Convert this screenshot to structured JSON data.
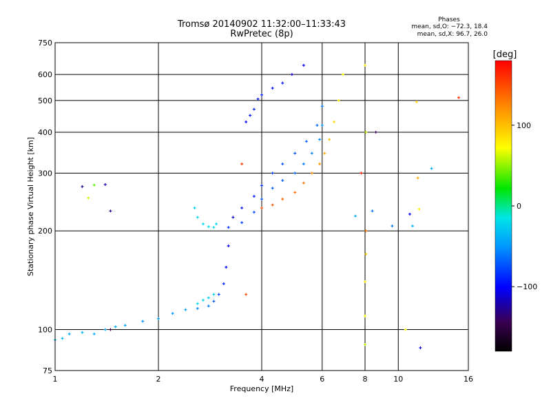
{
  "chart_data": {
    "type": "scatter",
    "title": "Tromsø 20140902 11:32:00–11:33:43",
    "subtitle": "RwPretec (8p)",
    "xlabel": "Frequency [MHz]",
    "ylabel": "Stationary phase Virtual Height [km]",
    "x_scale": "log",
    "y_scale": "log",
    "xlim": [
      1,
      16
    ],
    "ylim": [
      75,
      750
    ],
    "x_ticks": [
      1,
      2,
      4,
      6,
      8,
      10,
      16
    ],
    "y_ticks": [
      75,
      100,
      200,
      300,
      400,
      500,
      600,
      750
    ],
    "grid": true,
    "stats": {
      "heading": "Phases",
      "o_line": "mean, sd,O: −72.3, 18.4",
      "x_line": "mean, sd,X:  96.7, 26.0"
    },
    "colorbar": {
      "label": "[deg]",
      "range": [
        -180,
        180
      ],
      "ticks": [
        100,
        0,
        -100
      ]
    },
    "series": [
      {
        "x": [
          1.0,
          1.05,
          1.1,
          1.2,
          1.3,
          1.4,
          1.5,
          1.6,
          1.8,
          2.0,
          2.2,
          2.4,
          2.6,
          2.8,
          2.9,
          3.0,
          3.1,
          3.15,
          3.2,
          3.3,
          3.5,
          3.8,
          4.0,
          4.3,
          4.6,
          5.0,
          5.4,
          5.8,
          6.0
        ],
        "y": [
          93,
          94,
          97,
          98,
          97,
          100,
          102,
          103,
          106,
          108,
          112,
          115,
          116,
          118,
          122,
          128,
          138,
          155,
          180,
          220,
          235,
          255,
          275,
          300,
          320,
          345,
          375,
          420,
          480
        ],
        "phase": [
          -30,
          -35,
          -40,
          -35,
          -40,
          -45,
          -40,
          -45,
          -50,
          -45,
          -50,
          -45,
          -55,
          -60,
          -70,
          -80,
          -90,
          -100,
          -105,
          -110,
          -95,
          -90,
          -85,
          -80,
          -75,
          -72,
          -70,
          -65,
          -60
        ]
      },
      {
        "x": [
          3.2,
          3.5,
          3.8,
          4.0,
          4.3,
          4.6,
          5.0,
          5.3,
          5.6,
          5.9,
          6.0
        ],
        "y": [
          205,
          212,
          228,
          250,
          270,
          285,
          300,
          320,
          345,
          380,
          420
        ],
        "phase": [
          -85,
          -80,
          -78,
          -75,
          -72,
          -70,
          -68,
          -62,
          -58,
          -55,
          -50
        ]
      },
      {
        "x": [
          4.0,
          4.3,
          4.6,
          5.0,
          5.3,
          5.6,
          5.9,
          6.1,
          6.3,
          6.5,
          6.7,
          6.9
        ],
        "y": [
          235,
          240,
          250,
          262,
          280,
          300,
          320,
          345,
          380,
          430,
          500,
          600
        ],
        "phase": [
          150,
          145,
          140,
          135,
          130,
          125,
          120,
          110,
          100,
          90,
          80,
          70
        ]
      },
      {
        "x": [
          2.55,
          2.6,
          2.7,
          2.8,
          2.9,
          2.95
        ],
        "y": [
          235,
          220,
          210,
          206,
          205,
          210
        ],
        "phase": [
          -25,
          -22,
          -20,
          -18,
          -20,
          -22
        ]
      },
      {
        "x": [
          3.6,
          3.7,
          3.8,
          3.9,
          4.0,
          4.3,
          4.6,
          4.9,
          5.3
        ],
        "y": [
          430,
          450,
          470,
          505,
          520,
          545,
          565,
          600,
          640
        ],
        "phase": [
          -100,
          -95,
          -90,
          -95,
          -90,
          -100,
          -95,
          -110,
          -100
        ]
      },
      {
        "x": [
          2.6,
          2.7,
          2.8,
          2.9
        ],
        "y": [
          120,
          123,
          125,
          128
        ],
        "phase": [
          -20,
          -22,
          -25,
          -28
        ]
      },
      {
        "x": [
          8.0,
          8.0,
          8.0,
          8.05,
          8.05,
          8.05,
          8.0
        ],
        "y": [
          90,
          110,
          140,
          170,
          200,
          400,
          640
        ],
        "phase": [
          60,
          70,
          80,
          90,
          130,
          60,
          80
        ]
      },
      {
        "x": [
          1.2,
          1.25,
          1.3,
          1.4,
          1.45,
          1.45,
          3.5,
          3.6,
          7.5,
          7.8,
          8.4,
          8.6,
          9.6,
          10.5,
          11.0,
          11.3,
          11.5,
          11.6,
          10.8,
          11.4,
          12.5,
          15.0
        ],
        "y": [
          273,
          252,
          276,
          277,
          230,
          100,
          320,
          128,
          222,
          300,
          230,
          400,
          207,
          100,
          207,
          495,
          233,
          88,
          225,
          290,
          310,
          510
        ],
        "phase": [
          -130,
          60,
          40,
          -120,
          -130,
          -150,
          160,
          150,
          -40,
          170,
          -60,
          -140,
          -60,
          70,
          -40,
          90,
          80,
          -110,
          -100,
          110,
          -40,
          160
        ]
      }
    ]
  }
}
